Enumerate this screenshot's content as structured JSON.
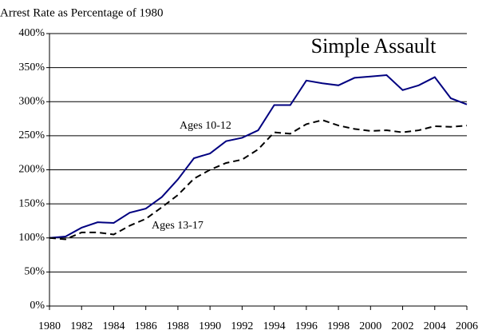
{
  "chart_data": {
    "type": "line",
    "title": "Arrest Rate as Percentage of 1980",
    "annotation": "Simple Assault",
    "x": [
      1980,
      1981,
      1982,
      1983,
      1984,
      1985,
      1986,
      1987,
      1988,
      1989,
      1990,
      1991,
      1992,
      1993,
      1994,
      1995,
      1996,
      1997,
      1998,
      1999,
      2000,
      2001,
      2002,
      2003,
      2004,
      2005,
      2006
    ],
    "series": [
      {
        "name": "Ages 10-12",
        "color": "#000080",
        "dashed": false,
        "values": [
          100,
          102,
          115,
          123,
          122,
          137,
          143,
          160,
          186,
          217,
          224,
          242,
          247,
          258,
          295,
          295,
          331,
          327,
          324,
          335,
          337,
          339,
          317,
          324,
          336,
          305,
          296
        ]
      },
      {
        "name": "Ages 13-17",
        "color": "#000000",
        "dashed": true,
        "values": [
          100,
          98,
          108,
          108,
          105,
          118,
          128,
          145,
          163,
          187,
          200,
          210,
          215,
          230,
          255,
          253,
          267,
          273,
          265,
          260,
          257,
          258,
          255,
          258,
          264,
          263,
          265
        ]
      }
    ],
    "xlim": [
      1980,
      2006
    ],
    "xticks": [
      1980,
      1982,
      1984,
      1986,
      1988,
      1990,
      1992,
      1994,
      1996,
      1998,
      2000,
      2002,
      2004,
      2006
    ],
    "ylim": [
      0,
      400
    ],
    "yticks": [
      {
        "value": 0,
        "label": "0%"
      },
      {
        "value": 50,
        "label": "50%"
      },
      {
        "value": 100,
        "label": "100%"
      },
      {
        "value": 150,
        "label": "150%"
      },
      {
        "value": 200,
        "label": "200%"
      },
      {
        "value": 250,
        "label": "250%"
      },
      {
        "value": 300,
        "label": "300%"
      },
      {
        "value": 350,
        "label": "350%"
      },
      {
        "value": 400,
        "label": "400%"
      }
    ],
    "grid": true
  }
}
